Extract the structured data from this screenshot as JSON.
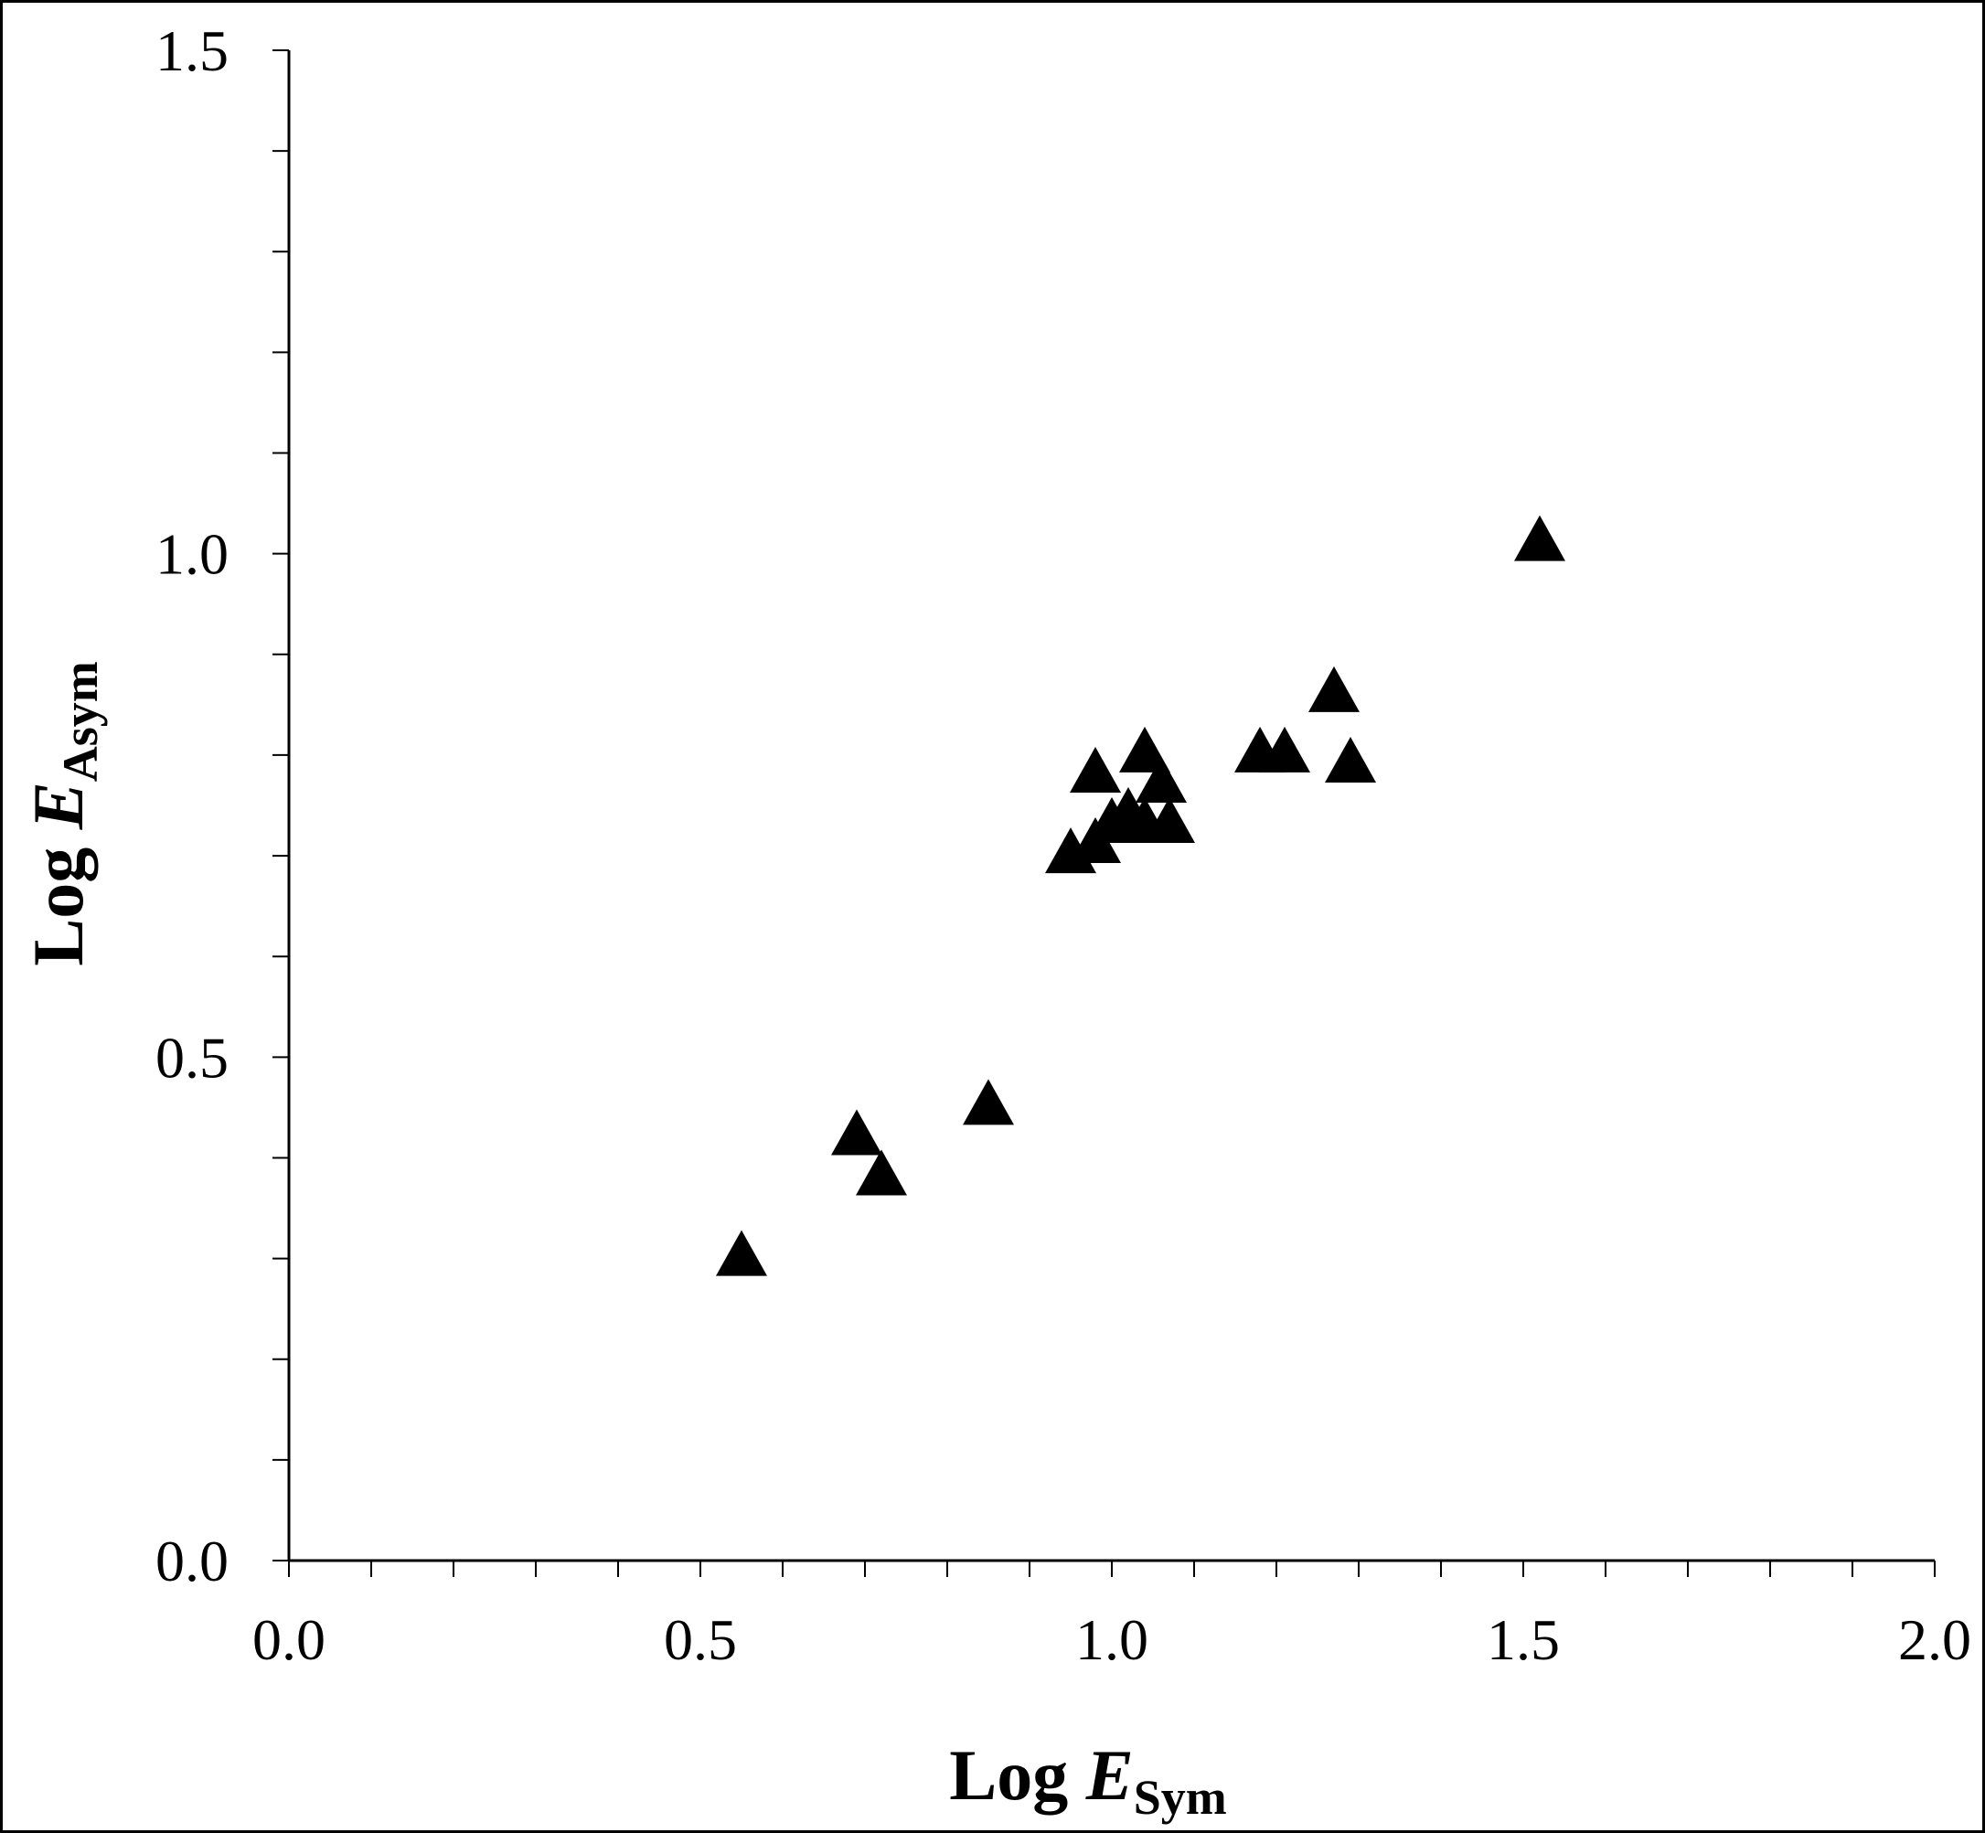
{
  "chart_data": {
    "type": "scatter",
    "title": "",
    "xlabel": {
      "prefix": "Log ",
      "var": "E",
      "sub": "Sym"
    },
    "ylabel": {
      "prefix": "Log ",
      "var": "E",
      "sub": "Asym"
    },
    "xlim": [
      0.0,
      2.0
    ],
    "ylim": [
      0.0,
      1.5
    ],
    "xticks": [
      "0.0",
      "0.5",
      "1.0",
      "1.5",
      "2.0"
    ],
    "yticks": [
      "0.0",
      "0.5",
      "1.0",
      "1.5"
    ],
    "x_minor_step": 0.1,
    "y_minor_step": 0.1,
    "grid": false,
    "marker": "filled-triangle",
    "marker_color": "#000000",
    "series": [
      {
        "points": [
          {
            "x": 0.55,
            "y": 0.3
          },
          {
            "x": 0.69,
            "y": 0.42
          },
          {
            "x": 0.72,
            "y": 0.38
          },
          {
            "x": 0.85,
            "y": 0.45
          },
          {
            "x": 0.95,
            "y": 0.7
          },
          {
            "x": 0.98,
            "y": 0.71
          },
          {
            "x": 0.98,
            "y": 0.78
          },
          {
            "x": 1.0,
            "y": 0.73
          },
          {
            "x": 1.02,
            "y": 0.74
          },
          {
            "x": 1.04,
            "y": 0.73
          },
          {
            "x": 1.04,
            "y": 0.8
          },
          {
            "x": 1.06,
            "y": 0.77
          },
          {
            "x": 1.07,
            "y": 0.73
          },
          {
            "x": 1.18,
            "y": 0.8
          },
          {
            "x": 1.21,
            "y": 0.8
          },
          {
            "x": 1.27,
            "y": 0.86
          },
          {
            "x": 1.29,
            "y": 0.79
          },
          {
            "x": 1.52,
            "y": 1.01
          }
        ]
      }
    ]
  }
}
